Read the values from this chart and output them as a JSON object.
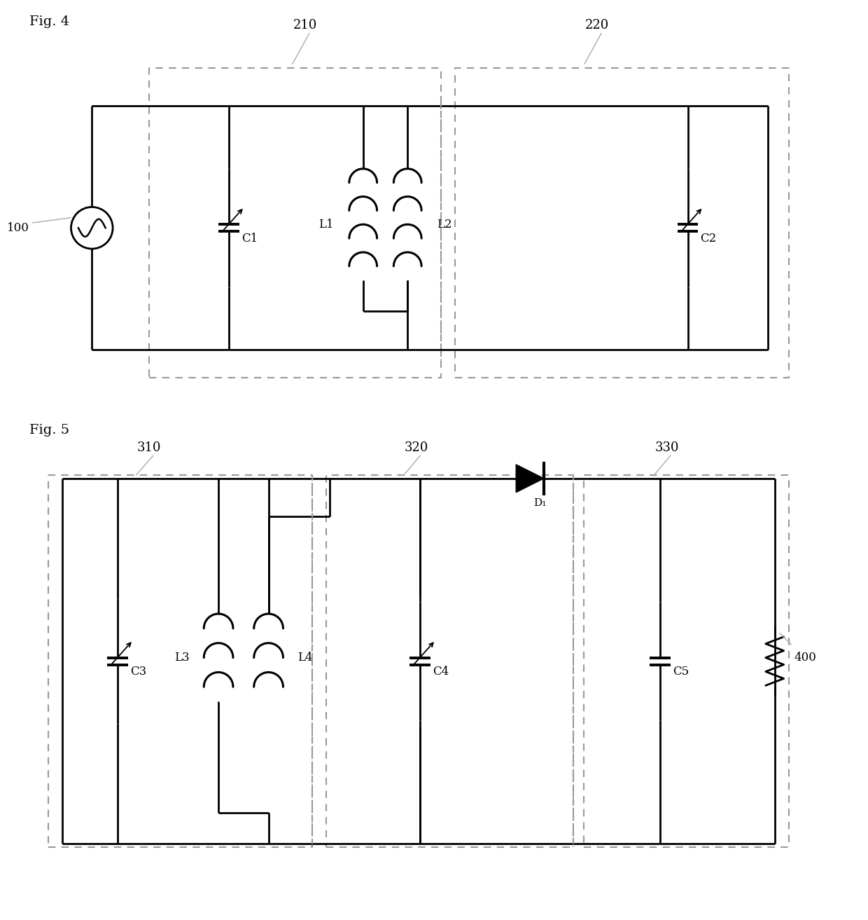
{
  "fig4_title": "Fig. 4",
  "fig5_title": "Fig. 5",
  "label_100": "100",
  "label_210": "210",
  "label_220": "220",
  "label_C1": "C1",
  "label_L1": "L1",
  "label_L2": "L2",
  "label_C2": "C2",
  "label_310": "310",
  "label_320": "320",
  "label_330": "330",
  "label_C3": "C3",
  "label_L3": "L3",
  "label_L4": "L4",
  "label_C4": "C4",
  "label_C5": "C5",
  "label_D1": "D₁",
  "label_400": "400",
  "line_color": "#000000",
  "dashed_color": "#999999",
  "bg_color": "#ffffff"
}
